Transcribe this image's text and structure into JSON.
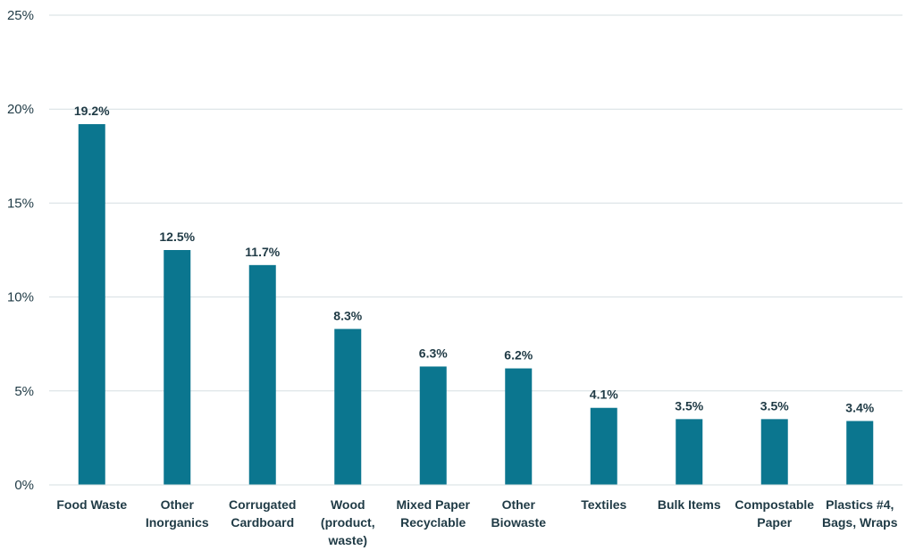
{
  "chart_data": {
    "type": "bar",
    "title": "",
    "xlabel": "",
    "ylabel": "",
    "ylim": [
      0,
      25
    ],
    "yticks": [
      "0%",
      "5%",
      "10%",
      "15%",
      "20%",
      "25%"
    ],
    "grid": true,
    "categories": [
      [
        "Food Waste"
      ],
      [
        "Other",
        "Inorganics"
      ],
      [
        "Corrugated",
        "Cardboard"
      ],
      [
        "Wood",
        "(product,",
        "waste)"
      ],
      [
        "Mixed Paper",
        "Recyclable"
      ],
      [
        "Other",
        "Biowaste"
      ],
      [
        "Textiles"
      ],
      [
        "Bulk Items"
      ],
      [
        "Compostable",
        "Paper"
      ],
      [
        "Plastics #4,",
        "Bags, Wraps"
      ]
    ],
    "values": [
      19.2,
      12.5,
      11.7,
      8.3,
      6.3,
      6.2,
      4.1,
      3.5,
      3.5,
      3.4
    ],
    "data_labels": [
      "19.2%",
      "12.5%",
      "11.7%",
      "8.3%",
      "6.3%",
      "6.2%",
      "4.1%",
      "3.5%",
      "3.5%",
      "3.4%"
    ],
    "colors": {
      "bar": "#0b768f",
      "grid": "#d6dfe2",
      "text": "#1f3a45"
    }
  }
}
